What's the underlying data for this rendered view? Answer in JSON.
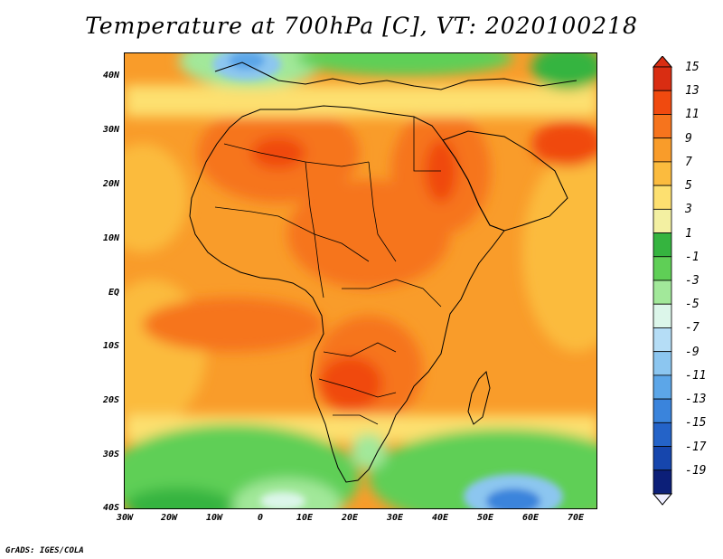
{
  "title": "Temperature at 700hPa [C], VT: 2020100218",
  "credit": "GrADS: IGES/COLA",
  "y_ticks": [
    "40N",
    "30N",
    "20N",
    "10N",
    "EQ",
    "10S",
    "20S",
    "30S",
    "40S"
  ],
  "x_ticks": [
    "30W",
    "20W",
    "10W",
    "0",
    "10E",
    "20E",
    "30E",
    "40E",
    "50E",
    "60E",
    "70E"
  ],
  "colorbar": {
    "labels": [
      "15",
      "13",
      "11",
      "9",
      "7",
      "5",
      "3",
      "1",
      "-1",
      "-3",
      "-5",
      "-7",
      "-9",
      "-11",
      "-13",
      "-15",
      "-17",
      "-19"
    ],
    "colors": [
      "#d92d12",
      "#f04a0f",
      "#f6741d",
      "#f99c2a",
      "#fbbb3e",
      "#fde070",
      "#f3f0a2",
      "#35b43f",
      "#5fcf56",
      "#a2e89a",
      "#dcf6ea",
      "#b5ddf6",
      "#8cc6f0",
      "#5ca6e8",
      "#3a84dc",
      "#2463c8",
      "#1646ad",
      "#0c1f78"
    ]
  }
}
